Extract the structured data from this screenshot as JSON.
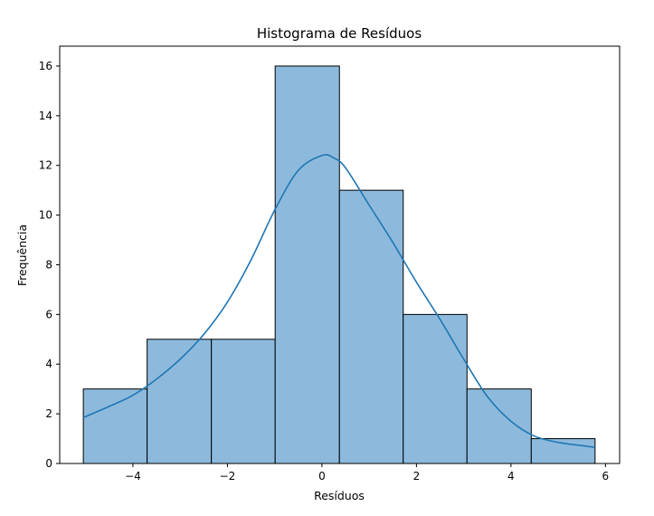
{
  "chart_data": {
    "type": "bar",
    "subtype": "histogram",
    "title": "Histograma de Resíduos",
    "xlabel": "Resíduos",
    "ylabel": "Frequência",
    "xlim": [
      -5.55,
      6.3
    ],
    "ylim": [
      0,
      16.8
    ],
    "xticks": [
      -4,
      -2,
      0,
      2,
      4,
      6
    ],
    "yticks": [
      0,
      2,
      4,
      6,
      8,
      10,
      12,
      14,
      16
    ],
    "bins": [
      {
        "x0": -5.05,
        "x1": -3.7,
        "count": 3
      },
      {
        "x0": -3.7,
        "x1": -2.34,
        "count": 5
      },
      {
        "x0": -2.34,
        "x1": -0.99,
        "count": 5
      },
      {
        "x0": -0.99,
        "x1": 0.37,
        "count": 16
      },
      {
        "x0": 0.37,
        "x1": 1.72,
        "count": 11
      },
      {
        "x0": 1.72,
        "x1": 3.07,
        "count": 6
      },
      {
        "x0": 3.07,
        "x1": 4.43,
        "count": 3
      },
      {
        "x0": 4.43,
        "x1": 5.78,
        "count": 1
      }
    ],
    "kde": {
      "x": [
        -5.05,
        -4.5,
        -4.0,
        -3.5,
        -3.0,
        -2.5,
        -2.0,
        -1.5,
        -1.0,
        -0.5,
        0.0,
        0.25,
        0.5,
        1.0,
        1.5,
        2.0,
        2.5,
        3.0,
        3.5,
        4.0,
        4.5,
        5.0,
        5.5,
        5.78
      ],
      "y": [
        1.85,
        2.3,
        2.75,
        3.4,
        4.2,
        5.2,
        6.5,
        8.2,
        10.2,
        11.8,
        12.4,
        12.3,
        11.9,
        10.4,
        8.9,
        7.3,
        5.8,
        4.2,
        2.7,
        1.7,
        1.1,
        0.85,
        0.72,
        0.65
      ]
    },
    "grid": false,
    "legend": "none",
    "colors": {
      "bar_fill": "#8dbadc",
      "bar_edge": "#000000",
      "kde_line": "#1f77b4"
    }
  }
}
